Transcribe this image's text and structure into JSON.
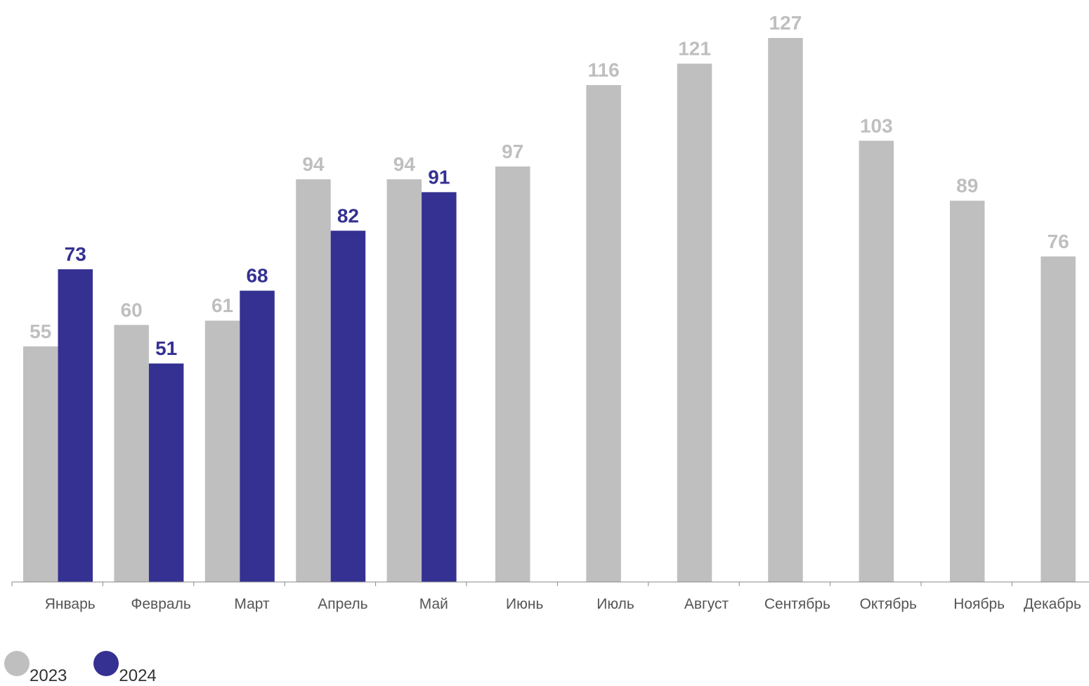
{
  "chart_data": {
    "type": "bar",
    "categories": [
      "Январь",
      "Февраль",
      "Март",
      "Апрель",
      "Май",
      "Июнь",
      "Июль",
      "Август",
      "Сентябрь",
      "Октябрь",
      "Ноябрь",
      "Декабрь"
    ],
    "series": [
      {
        "name": "2023",
        "color": "#bfbfbf",
        "values": [
          55,
          60,
          61,
          94,
          94,
          97,
          116,
          121,
          127,
          103,
          89,
          76
        ]
      },
      {
        "name": "2024",
        "color": "#353192",
        "values": [
          73,
          51,
          68,
          82,
          91,
          null,
          null,
          null,
          null,
          null,
          null,
          null
        ]
      }
    ],
    "ylim": [
      0,
      127
    ],
    "grid": false,
    "legend_position": "bottom-left"
  }
}
